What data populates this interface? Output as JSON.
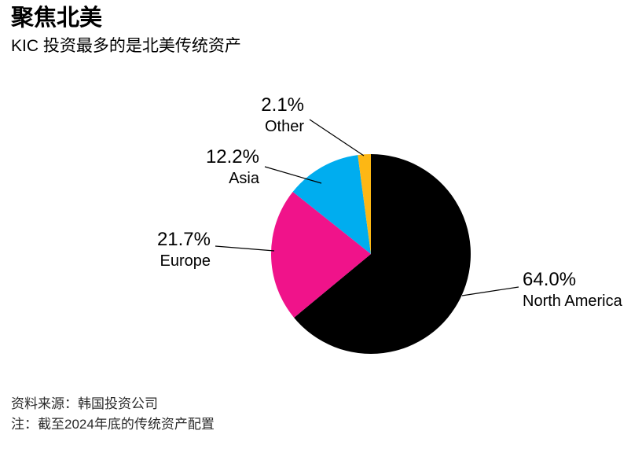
{
  "chart_data": {
    "type": "pie",
    "title": "聚焦北美",
    "subtitle": "KIC 投资最多的是北美传统资产",
    "source": "资料来源：韩国投资公司",
    "note": "注：截至2024年底的传统资产配置",
    "unit": "%",
    "start_angle": "top",
    "direction": "clockwise",
    "legend": "none",
    "slices": [
      {
        "label": "North America",
        "value": 64.0,
        "display": "64.0%",
        "color": "#000000"
      },
      {
        "label": "Europe",
        "value": 21.7,
        "display": "21.7%",
        "color": "#f0138a"
      },
      {
        "label": "Asia",
        "value": 12.2,
        "display": "12.2%",
        "color": "#00adef"
      },
      {
        "label": "Other",
        "value": 2.1,
        "display": "2.1%",
        "color": "#fdb714"
      }
    ]
  }
}
